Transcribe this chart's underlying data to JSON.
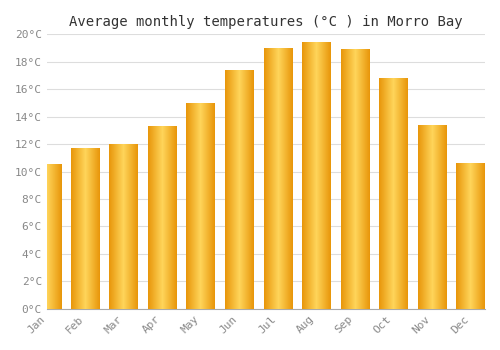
{
  "title": "Average monthly temperatures (°C ) in Morro Bay",
  "months": [
    "Jan",
    "Feb",
    "Mar",
    "Apr",
    "May",
    "Jun",
    "Jul",
    "Aug",
    "Sep",
    "Oct",
    "Nov",
    "Dec"
  ],
  "values": [
    10.5,
    11.7,
    12.0,
    13.3,
    15.0,
    17.4,
    19.0,
    19.4,
    18.9,
    16.8,
    13.4,
    10.6
  ],
  "bar_color_left": "#F5A800",
  "bar_color_center": "#FFD55A",
  "bar_color_right": "#F5A800",
  "ylim": [
    0,
    20
  ],
  "ytick_step": 2,
  "background_color": "#FFFFFF",
  "plot_bg_color": "#FFFFFF",
  "grid_color": "#DDDDDD",
  "title_fontsize": 10,
  "tick_fontsize": 8,
  "font_family": "monospace",
  "tick_color": "#888888"
}
